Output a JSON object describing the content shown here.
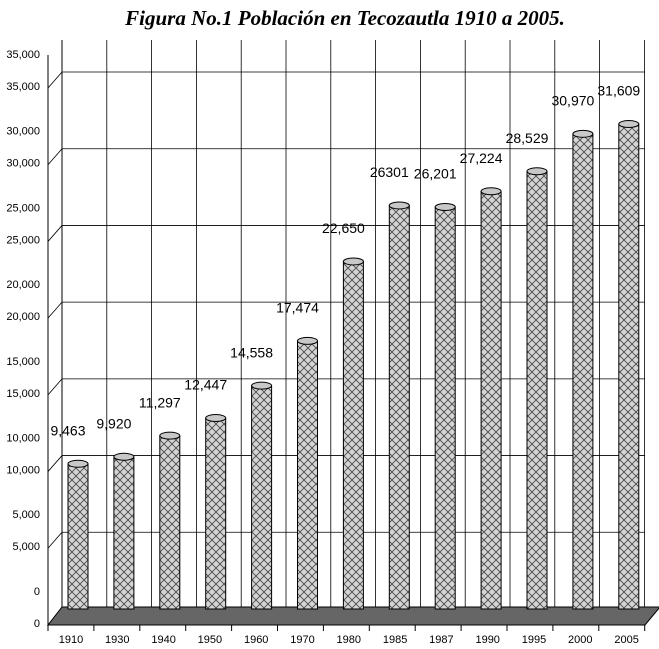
{
  "chart_data": {
    "type": "bar",
    "title": "Figura No.1 Población en Tecozautla 1910 a 2005.",
    "categories": [
      "1910",
      "1930",
      "1940",
      "1950",
      "1960",
      "1970",
      "1980",
      "1985",
      "1987",
      "1990",
      "1995",
      "2000",
      "2005"
    ],
    "values": [
      9463,
      9920,
      11297,
      12447,
      14558,
      17474,
      22650,
      26301,
      26201,
      27224,
      28529,
      30970,
      31609
    ],
    "value_labels": [
      "9,463",
      "9,920",
      "11,297",
      "12,447",
      "14,558",
      "17,474",
      "22,650",
      "26301",
      "26,201",
      "27,224",
      "28,529",
      "30,970",
      "31,609"
    ],
    "color": "#c8c8c8",
    "ylim": [
      0,
      35000
    ],
    "yticks": [
      0,
      {
        "value": 5000,
        "label": "5,000"
      },
      {
        "value": 10000,
        "label": "10,000"
      },
      {
        "value": 15000,
        "label": "15,000"
      },
      {
        "value": 20000,
        "label": "20,000"
      },
      {
        "value": 25000,
        "label": "25,000"
      },
      {
        "value": 30000,
        "label": "30,000"
      },
      {
        "value": 35000,
        "label": "35,000"
      }
    ],
    "grid": true
  }
}
